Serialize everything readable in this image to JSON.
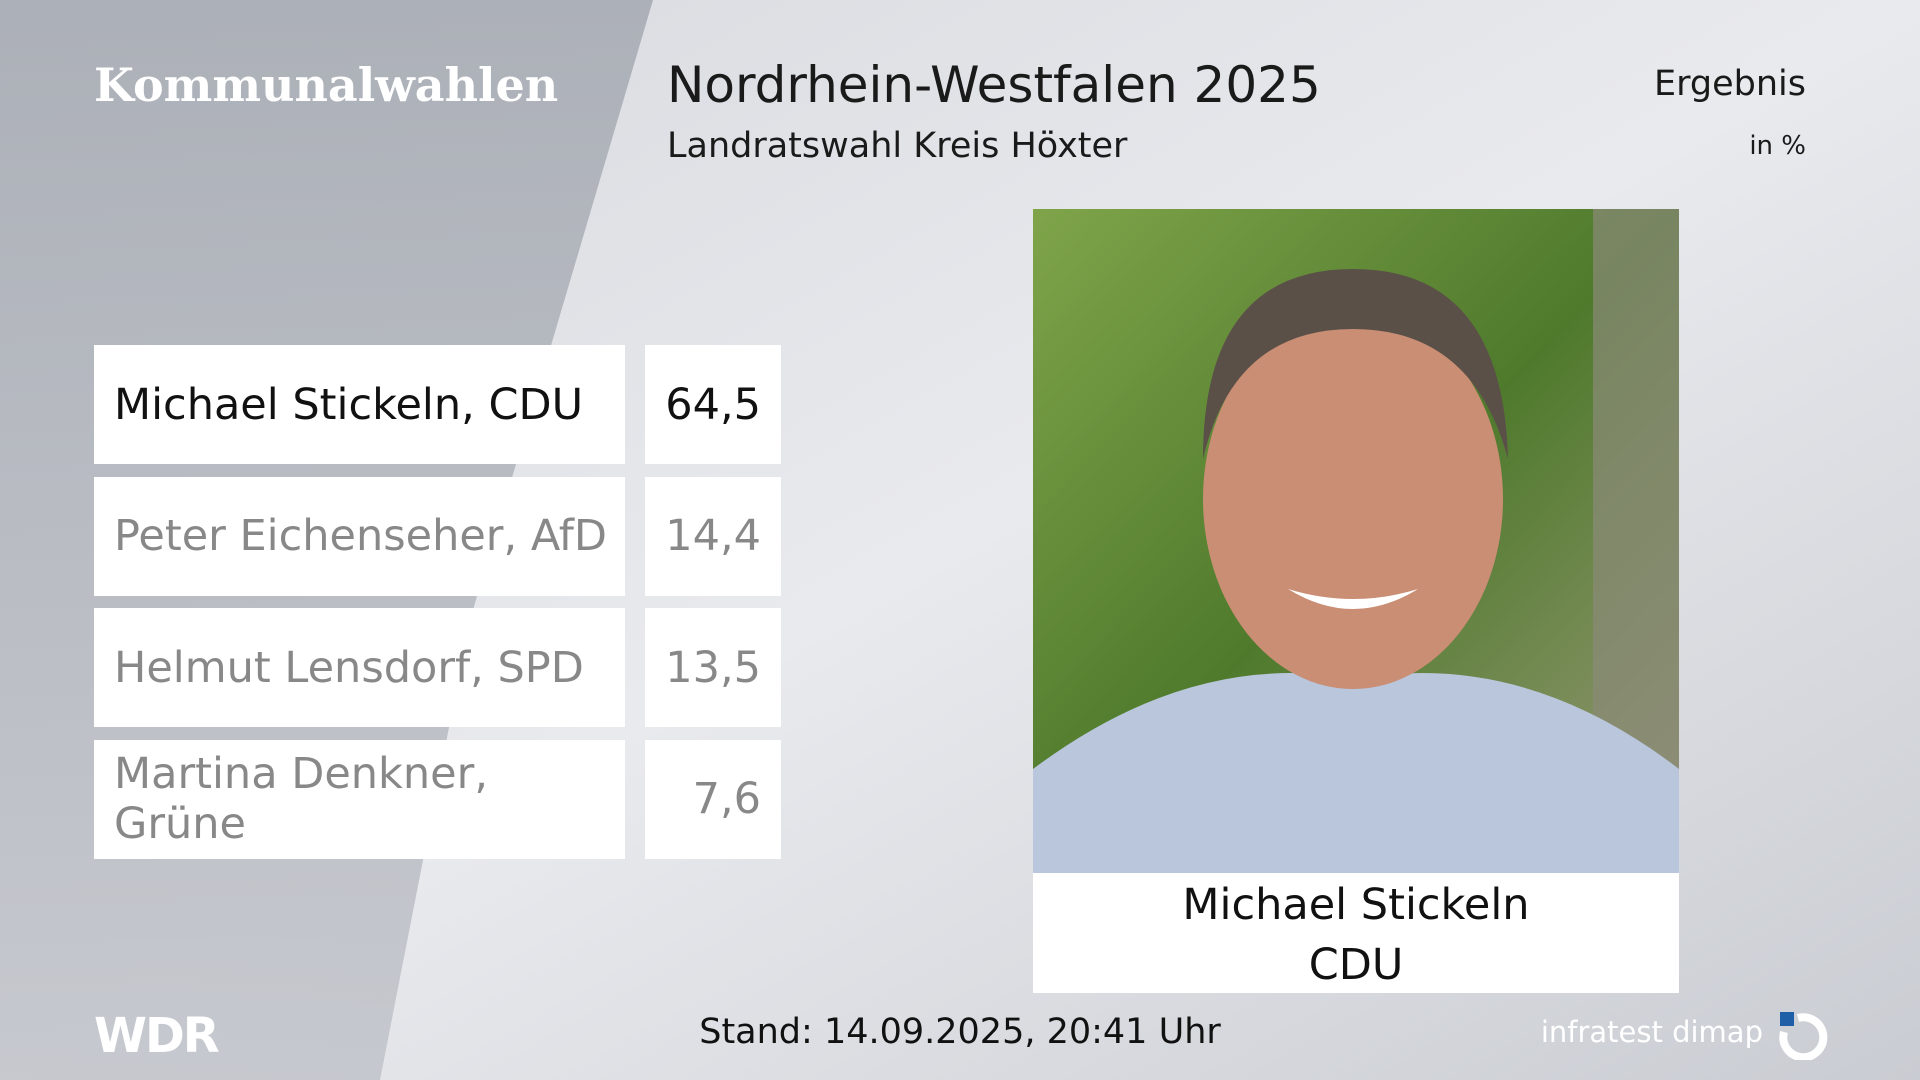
{
  "header": {
    "title": "Kommunalwahlen",
    "heading": "Nordrhein-Westfalen 2025",
    "subheading": "Landratswahl Kreis Höxter",
    "result_label": "Ergebnis",
    "unit": "in %"
  },
  "table": {
    "rows": [
      [
        "Michael Stickeln, CDU",
        "64,5"
      ],
      [
        "Peter Eichenseher, AfD",
        "14,4"
      ],
      [
        "Helmut Lensdorf, SPD",
        "13,5"
      ],
      [
        "Martina Denkner, Grüne",
        "7,6"
      ]
    ]
  },
  "candidate": {
    "name": "Michael Stickeln",
    "party": "CDU"
  },
  "footer": {
    "logo": "WDR",
    "timestamp": "Stand: 14.09.2025, 20:41 Uhr",
    "source": "infratest dimap"
  }
}
